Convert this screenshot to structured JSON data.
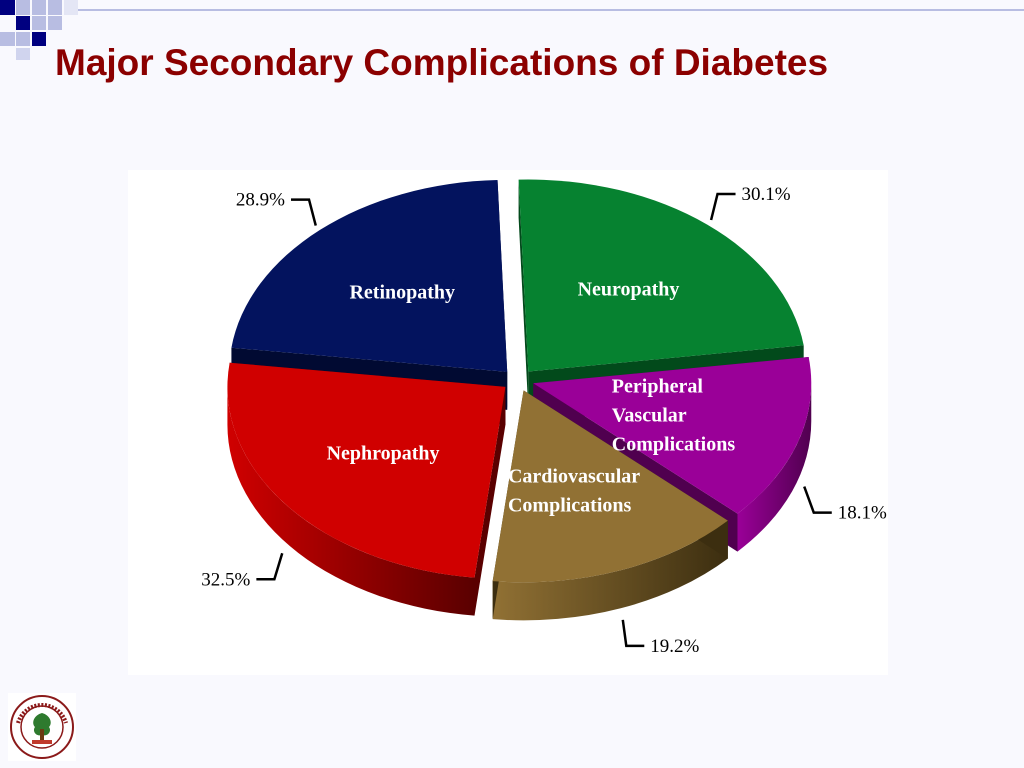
{
  "slide": {
    "title": "Major Secondary Complications of Diabetes"
  },
  "colors": {
    "title": "#8b0000",
    "deco_dark": "#000080",
    "deco_light": "#b8bde2"
  },
  "chart_data": {
    "type": "pie",
    "style": "3d-exploded",
    "unit": "%",
    "slices": [
      {
        "label": "Neuropathy",
        "value": 30.1,
        "value_label": "30.1%",
        "color": "#068230",
        "side_color": "#024a1b"
      },
      {
        "label": "Peripheral Vascular Complications",
        "label_lines": [
          "Peripheral",
          "Vascular",
          "Complications"
        ],
        "value": 18.1,
        "value_label": "18.1%",
        "color": "#9a0098",
        "side_color": "#50004f"
      },
      {
        "label": "Cardiovascular Complications",
        "label_lines": [
          "Cardiovascular",
          "Complications"
        ],
        "value": 19.2,
        "value_label": "19.2%",
        "color": "#917134",
        "side_color": "#3c2e10"
      },
      {
        "label": "Nephropathy",
        "value": 32.5,
        "value_label": "32.5%",
        "color": "#d00000",
        "side_color": "#5a0000"
      },
      {
        "label": "Retinopathy",
        "value": 28.9,
        "value_label": "28.9%",
        "color": "#03135e",
        "side_color": "#010a32"
      }
    ]
  },
  "logo": {
    "name": "Sardar Patel University seal",
    "text": "SARDAR PATEL UNIVERSITY"
  }
}
